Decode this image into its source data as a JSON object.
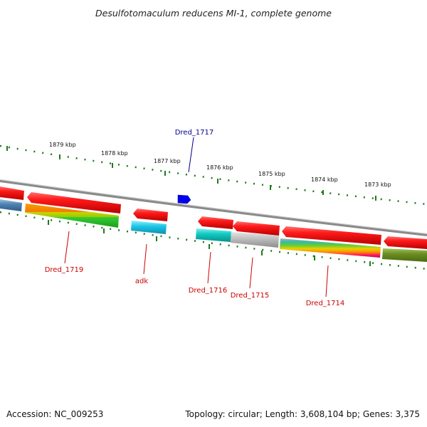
{
  "title": "Desulfotomaculum reducens MI-1, complete genome",
  "footer": {
    "accession": "Accession: NC_009253",
    "topology": "Topology: circular; Length: 3,608,104 bp; Genes: 3,375"
  },
  "kbp_labels": [
    "1879 kbp",
    "1878 kbp",
    "1877 kbp",
    "1876 kbp",
    "1875 kbp",
    "1874 kbp",
    "1873 kbp"
  ],
  "gene_labels": [
    {
      "text": "Dred_1717",
      "color": "#00008b"
    },
    {
      "text": "Dred_1719",
      "color": "#cc0000"
    },
    {
      "text": "adk",
      "color": "#cc0000"
    },
    {
      "text": "Dred_1716",
      "color": "#cc0000"
    },
    {
      "text": "Dred_1715",
      "color": "#cc0000"
    },
    {
      "text": "Dred_1714",
      "color": "#cc0000"
    }
  ],
  "colors": {
    "backbone": "#8a8a8a",
    "gene": "#ff1a1a",
    "ticks": "#1f7a1f",
    "selected_gene": "#0000ee"
  }
}
